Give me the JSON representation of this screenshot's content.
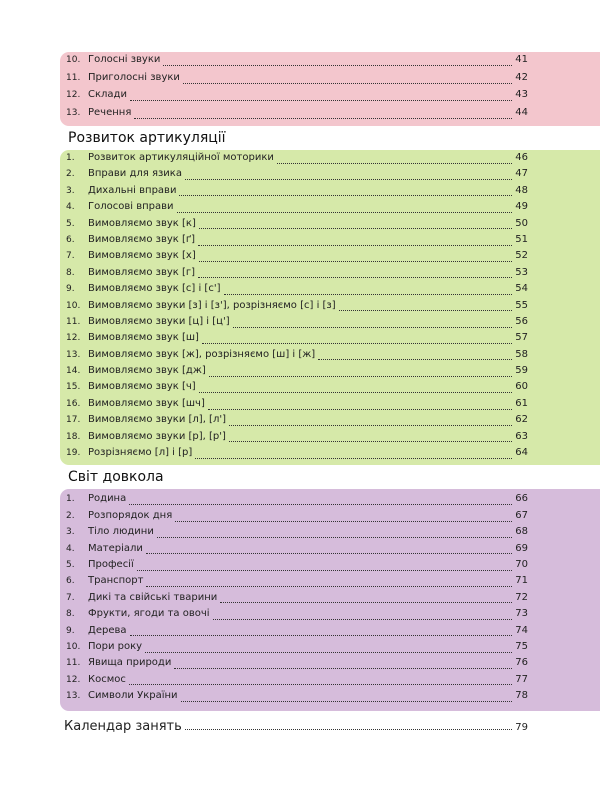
{
  "sections": [
    {
      "items": [
        {
          "num": "10.",
          "text": "Голосні звуки",
          "page": "41"
        },
        {
          "num": "11.",
          "text": "Приголосні звуки",
          "page": "42"
        },
        {
          "num": "12.",
          "text": "Склади",
          "page": "43"
        },
        {
          "num": "13.",
          "text": "Речення",
          "page": "44"
        }
      ]
    },
    {
      "title": "Розвиток артикуляції",
      "items": [
        {
          "num": "1.",
          "text": "Розвиток артикуляційної моторики",
          "page": "46"
        },
        {
          "num": "2.",
          "text": "Вправи для язика",
          "page": "47"
        },
        {
          "num": "3.",
          "text": "Дихальні вправи",
          "page": "48"
        },
        {
          "num": "4.",
          "text": "Голосові вправи",
          "page": "49"
        },
        {
          "num": "5.",
          "text": "Вимовляємо звук [к]",
          "page": "50"
        },
        {
          "num": "6.",
          "text": "Вимовляємо звук [ґ]",
          "page": "51"
        },
        {
          "num": "7.",
          "text": "Вимовляємо звук [х]",
          "page": "52"
        },
        {
          "num": "8.",
          "text": "Вимовляємо звук [г]",
          "page": "53"
        },
        {
          "num": "9.",
          "text": "Вимовляємо звук [с] і [с']",
          "page": "54"
        },
        {
          "num": "10.",
          "text": "Вимовляємо звуки [з] і [з'], розрізняємо [с] і [з]",
          "page": "55"
        },
        {
          "num": "11.",
          "text": "Вимовляємо звуки [ц] і [ц']",
          "page": "56"
        },
        {
          "num": "12.",
          "text": "Вимовляємо звук [ш]",
          "page": "57"
        },
        {
          "num": "13.",
          "text": "Вимовляємо звук [ж], розрізняємо [ш] і [ж]",
          "page": "58"
        },
        {
          "num": "14.",
          "text": "Вимовляємо звук [дж]",
          "page": "59"
        },
        {
          "num": "15.",
          "text": "Вимовляємо звук [ч]",
          "page": "60"
        },
        {
          "num": "16.",
          "text": "Вимовляємо звук [шч]",
          "page": "61"
        },
        {
          "num": "17.",
          "text": "Вимовляємо звуки [л], [л']",
          "page": "62"
        },
        {
          "num": "18.",
          "text": "Вимовляємо звуки [р], [р']",
          "page": "63"
        },
        {
          "num": "19.",
          "text": "Розрізняємо [л] і [р]",
          "page": "64"
        }
      ]
    },
    {
      "title": "Світ довкола",
      "items": [
        {
          "num": "1.",
          "text": "Родина",
          "page": "66"
        },
        {
          "num": "2.",
          "text": "Розпорядок дня",
          "page": "67"
        },
        {
          "num": "3.",
          "text": "Тіло людини",
          "page": "68"
        },
        {
          "num": "4.",
          "text": "Матеріали",
          "page": "69"
        },
        {
          "num": "5.",
          "text": "Професії",
          "page": "70"
        },
        {
          "num": "6.",
          "text": "Транспорт",
          "page": "71"
        },
        {
          "num": "7.",
          "text": "Дикі та свійські тварини",
          "page": "72"
        },
        {
          "num": "8.",
          "text": "Фрукти, ягоди та овочі",
          "page": "73"
        },
        {
          "num": "9.",
          "text": "Дерева",
          "page": "74"
        },
        {
          "num": "10.",
          "text": "Пори року",
          "page": "75"
        },
        {
          "num": "11.",
          "text": "Явища природи",
          "page": "76"
        },
        {
          "num": "12.",
          "text": "Космос",
          "page": "77"
        },
        {
          "num": "13.",
          "text": "Символи України",
          "page": "78"
        }
      ]
    }
  ],
  "final": {
    "text": "Календар занять",
    "page": "79"
  }
}
